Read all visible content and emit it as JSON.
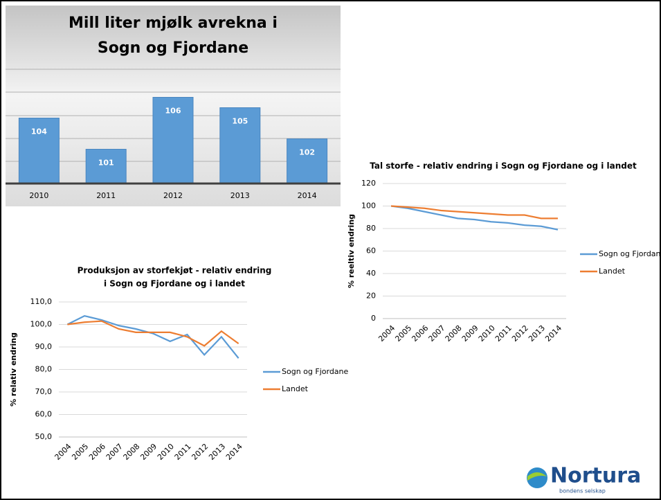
{
  "chart_data": [
    {
      "type": "bar",
      "title": [
        "Mill liter mjølk avrekna i",
        "Sogn og Fjordane"
      ],
      "categories": [
        "2010",
        "2011",
        "2012",
        "2013",
        "2014"
      ],
      "values": [
        104,
        101,
        106,
        105,
        102
      ],
      "color": "#5b9bd5",
      "ylim": [
        97.7,
        108.7
      ]
    },
    {
      "type": "line",
      "title": [
        "Tal storfe - relativ endring i Sogn og Fjordane og i landet"
      ],
      "ylabel": "% reeltiv endring",
      "categories": [
        "2004",
        "2005",
        "2006",
        "2007",
        "2008",
        "2009",
        "2010",
        "2011",
        "2012",
        "2013",
        "2014"
      ],
      "series": [
        {
          "name": "Sogn og Fjordane",
          "color": "#5b9bd5",
          "values": [
            100,
            98,
            95,
            92,
            89,
            88,
            86,
            85,
            83,
            82,
            79
          ]
        },
        {
          "name": "Landet",
          "color": "#ed7d31",
          "values": [
            100,
            99,
            98,
            96,
            95,
            94,
            93,
            92,
            92,
            89,
            89
          ]
        }
      ],
      "ylim": [
        0,
        120
      ],
      "yticks": [
        0,
        20,
        40,
        60,
        80,
        100,
        120
      ],
      "grid": true,
      "legend": "right"
    },
    {
      "type": "line",
      "title": [
        "Produksjon av storfekjøt - relativ endring",
        " i Sogn og Fjordane og i landet"
      ],
      "ylabel": "% relativ endring",
      "categories": [
        "2004",
        "2005",
        "2006",
        "2007",
        "2008",
        "2009",
        "2010",
        "2011",
        "2012",
        "2013",
        "2014"
      ],
      "series": [
        {
          "name": "Sogn og Fjordane",
          "color": "#5b9bd5",
          "values": [
            100,
            103.8,
            102,
            99.5,
            98,
            96,
            92.5,
            95.5,
            86.5,
            94.5,
            85
          ]
        },
        {
          "name": "Landet",
          "color": "#ed7d31",
          "values": [
            100,
            101,
            101.5,
            98,
            96.5,
            96.5,
            96.5,
            94.5,
            90.5,
            97,
            91.5
          ]
        }
      ],
      "ylim": [
        50,
        110
      ],
      "yticks": [
        {
          "value": 50,
          "label": "50,0"
        },
        {
          "value": 60,
          "label": "60,0"
        },
        {
          "value": 70,
          "label": "70,0"
        },
        {
          "value": 80,
          "label": "80,0"
        },
        {
          "value": 90,
          "label": "90,0"
        },
        {
          "value": 100,
          "label": "100,0"
        },
        {
          "value": 110,
          "label": "110,0"
        }
      ],
      "grid": true,
      "legend": "right"
    }
  ],
  "logo": {
    "name": "Nortura",
    "tagline": "bondens selskap"
  }
}
